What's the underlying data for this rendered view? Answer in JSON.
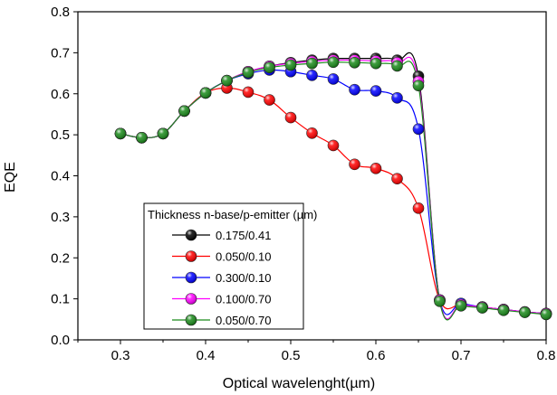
{
  "chart_data": {
    "type": "line",
    "xlabel": "Optical wavelenght(µm)",
    "ylabel": "EQE",
    "xlim": [
      0.25,
      0.8
    ],
    "ylim": [
      0.0,
      0.8
    ],
    "x_ticks": [
      "0.3",
      "0.4",
      "0.5",
      "0.6",
      "0.7",
      "0.8"
    ],
    "y_ticks": [
      "0.0",
      "0.1",
      "0.2",
      "0.3",
      "0.4",
      "0.5",
      "0.6",
      "0.7",
      "0.8"
    ],
    "grid": false,
    "legend": {
      "title": "Thickness n-base/p-emitter (µm)",
      "placement": "lower-center"
    },
    "series": [
      {
        "name": "0.175/0.41",
        "color": "#000000",
        "x": [
          0.3,
          0.325,
          0.35,
          0.375,
          0.4,
          0.425,
          0.45,
          0.475,
          0.5,
          0.525,
          0.55,
          0.575,
          0.6,
          0.625,
          0.65,
          0.675,
          0.7,
          0.725,
          0.75,
          0.775,
          0.8
        ],
        "y": [
          0.503,
          0.493,
          0.503,
          0.558,
          0.602,
          0.632,
          0.654,
          0.667,
          0.676,
          0.682,
          0.686,
          0.686,
          0.686,
          0.682,
          0.643,
          0.097,
          0.086,
          0.08,
          0.074,
          0.068,
          0.064
        ]
      },
      {
        "name": "0.050/0.10",
        "color": "#ff0000",
        "x": [
          0.3,
          0.325,
          0.35,
          0.375,
          0.4,
          0.425,
          0.45,
          0.475,
          0.5,
          0.525,
          0.55,
          0.575,
          0.6,
          0.625,
          0.65,
          0.675,
          0.7,
          0.725,
          0.75,
          0.775,
          0.8
        ],
        "y": [
          0.503,
          0.493,
          0.503,
          0.558,
          0.602,
          0.614,
          0.604,
          0.585,
          0.542,
          0.504,
          0.474,
          0.428,
          0.418,
          0.393,
          0.321,
          0.097,
          0.086,
          0.08,
          0.074,
          0.068,
          0.064
        ]
      },
      {
        "name": "0.300/0.10",
        "color": "#0000ff",
        "x": [
          0.3,
          0.325,
          0.35,
          0.375,
          0.4,
          0.425,
          0.45,
          0.475,
          0.5,
          0.525,
          0.55,
          0.575,
          0.6,
          0.625,
          0.65,
          0.675,
          0.7,
          0.725,
          0.75,
          0.775,
          0.8
        ],
        "y": [
          0.503,
          0.493,
          0.503,
          0.558,
          0.602,
          0.632,
          0.649,
          0.658,
          0.654,
          0.645,
          0.636,
          0.61,
          0.607,
          0.59,
          0.514,
          0.097,
          0.089,
          0.08,
          0.074,
          0.068,
          0.064
        ]
      },
      {
        "name": "0.100/0.70",
        "color": "#ff00ff",
        "x": [
          0.3,
          0.325,
          0.35,
          0.375,
          0.4,
          0.425,
          0.45,
          0.475,
          0.5,
          0.525,
          0.55,
          0.575,
          0.6,
          0.625,
          0.65,
          0.675,
          0.7,
          0.725,
          0.75,
          0.775,
          0.8
        ],
        "y": [
          0.503,
          0.493,
          0.503,
          0.558,
          0.602,
          0.632,
          0.654,
          0.667,
          0.674,
          0.679,
          0.682,
          0.682,
          0.68,
          0.676,
          0.63,
          0.097,
          0.086,
          0.08,
          0.074,
          0.068,
          0.064
        ]
      },
      {
        "name": "0.050/0.70",
        "color": "#1a8a1a",
        "x": [
          0.3,
          0.325,
          0.35,
          0.375,
          0.4,
          0.425,
          0.45,
          0.475,
          0.5,
          0.525,
          0.55,
          0.575,
          0.6,
          0.625,
          0.65,
          0.675,
          0.7,
          0.725,
          0.75,
          0.775,
          0.8
        ],
        "y": [
          0.503,
          0.493,
          0.503,
          0.558,
          0.602,
          0.632,
          0.652,
          0.664,
          0.67,
          0.674,
          0.677,
          0.676,
          0.674,
          0.668,
          0.62,
          0.094,
          0.083,
          0.078,
          0.072,
          0.067,
          0.062
        ]
      }
    ]
  }
}
